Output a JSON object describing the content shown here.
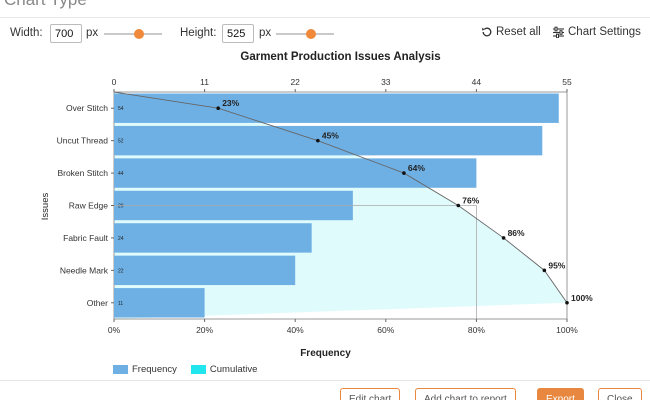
{
  "header": {
    "title": "Chart Type"
  },
  "controls": {
    "width_label": "Width:",
    "width_value": "700",
    "height_label": "Height:",
    "height_value": "525",
    "unit": "px",
    "width_slider_fraction": 0.6,
    "height_slider_fraction": 0.6,
    "reset_label": "Reset all",
    "settings_label": "Chart Settings"
  },
  "footer": {
    "buttons": [
      "Edit chart",
      "Add chart to report",
      "Export",
      "Close"
    ]
  },
  "colors": {
    "bar": "#6fb0e4",
    "cumulative_fill": "#e0fbfb",
    "cumulative_legend": "#22e6ee",
    "accent": "#f08a3a",
    "line": "#666666"
  },
  "chart_data": {
    "type": "bar",
    "title": "Garment Production Issues Analysis",
    "xlabel": "Frequency",
    "ylabel": "Issues",
    "categories": [
      "Over Stitch",
      "Uncut Thread",
      "Broken Stitch",
      "Raw Edge",
      "Fabric Fault",
      "Needle Mark",
      "Other"
    ],
    "values": [
      54,
      52,
      44,
      29,
      24,
      22,
      11
    ],
    "top_axis_ticks": [
      "0",
      "11",
      "22",
      "33",
      "44",
      "55"
    ],
    "xlim": [
      0,
      55
    ],
    "bottom_axis_ticks": [
      "0%",
      "20%",
      "40%",
      "60%",
      "80%",
      "100%"
    ],
    "cumulative": {
      "values": [
        23,
        45,
        64,
        76,
        86,
        95,
        100
      ],
      "labels": [
        "23%",
        "45%",
        "64%",
        "76%",
        "86%",
        "95%",
        "100%"
      ]
    },
    "reference_line": 80,
    "legend": [
      "Frequency",
      "Cumulative"
    ],
    "legend_position": "bottom-left"
  }
}
